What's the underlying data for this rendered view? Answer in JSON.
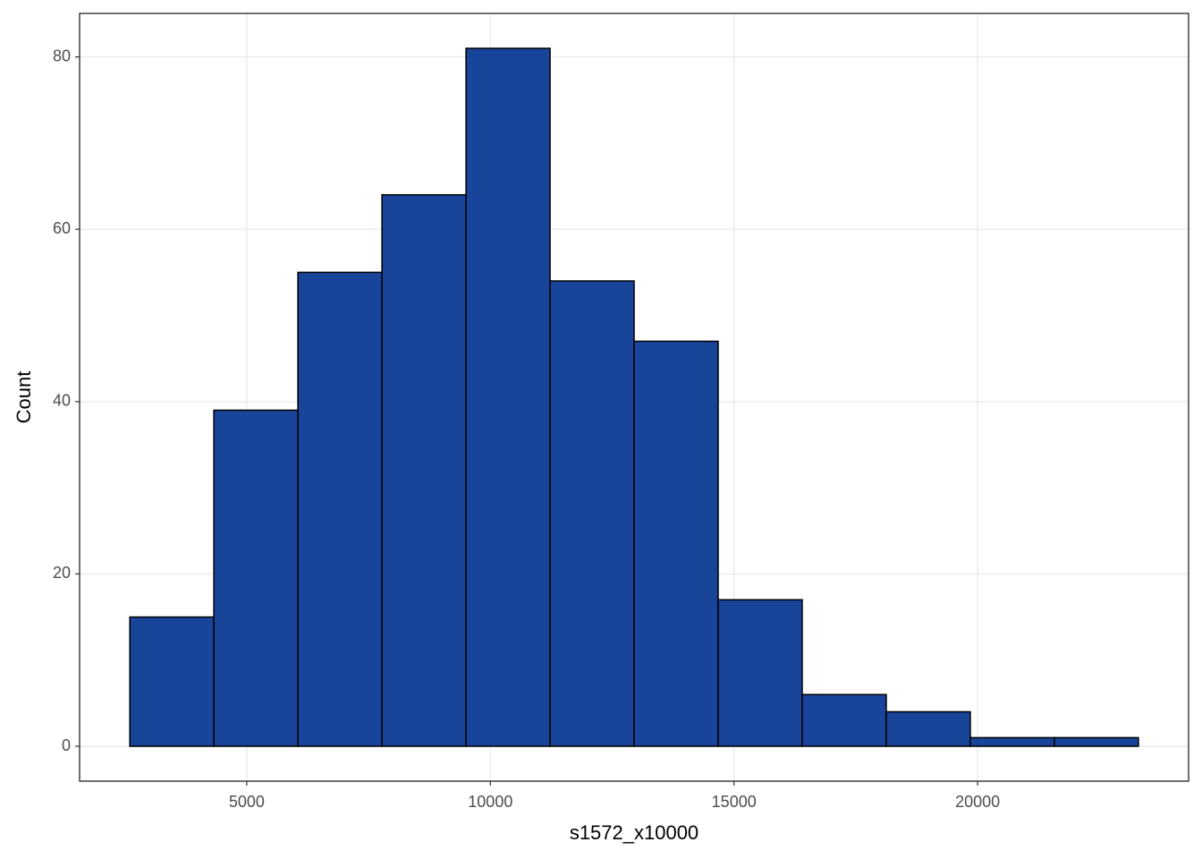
{
  "chart_data": {
    "type": "histogram",
    "x_label": "s1572_x10000",
    "y_label": "Count",
    "bins": [
      2600,
      4325,
      6050,
      7775,
      9500,
      11225,
      12950,
      14675,
      16400,
      18125,
      19850,
      21575,
      23300
    ],
    "values": [
      15,
      39,
      55,
      64,
      81,
      54,
      47,
      17,
      6,
      4,
      1,
      1
    ],
    "color": "#18449a",
    "edgecolor": "#000000",
    "xlim": [
      1569,
      24330
    ],
    "xticks": [
      5000,
      10000,
      15000,
      20000
    ],
    "ylim": [
      -4.05,
      85.05
    ],
    "yticks": [
      0,
      20,
      40,
      60,
      80
    ],
    "grid": true
  }
}
